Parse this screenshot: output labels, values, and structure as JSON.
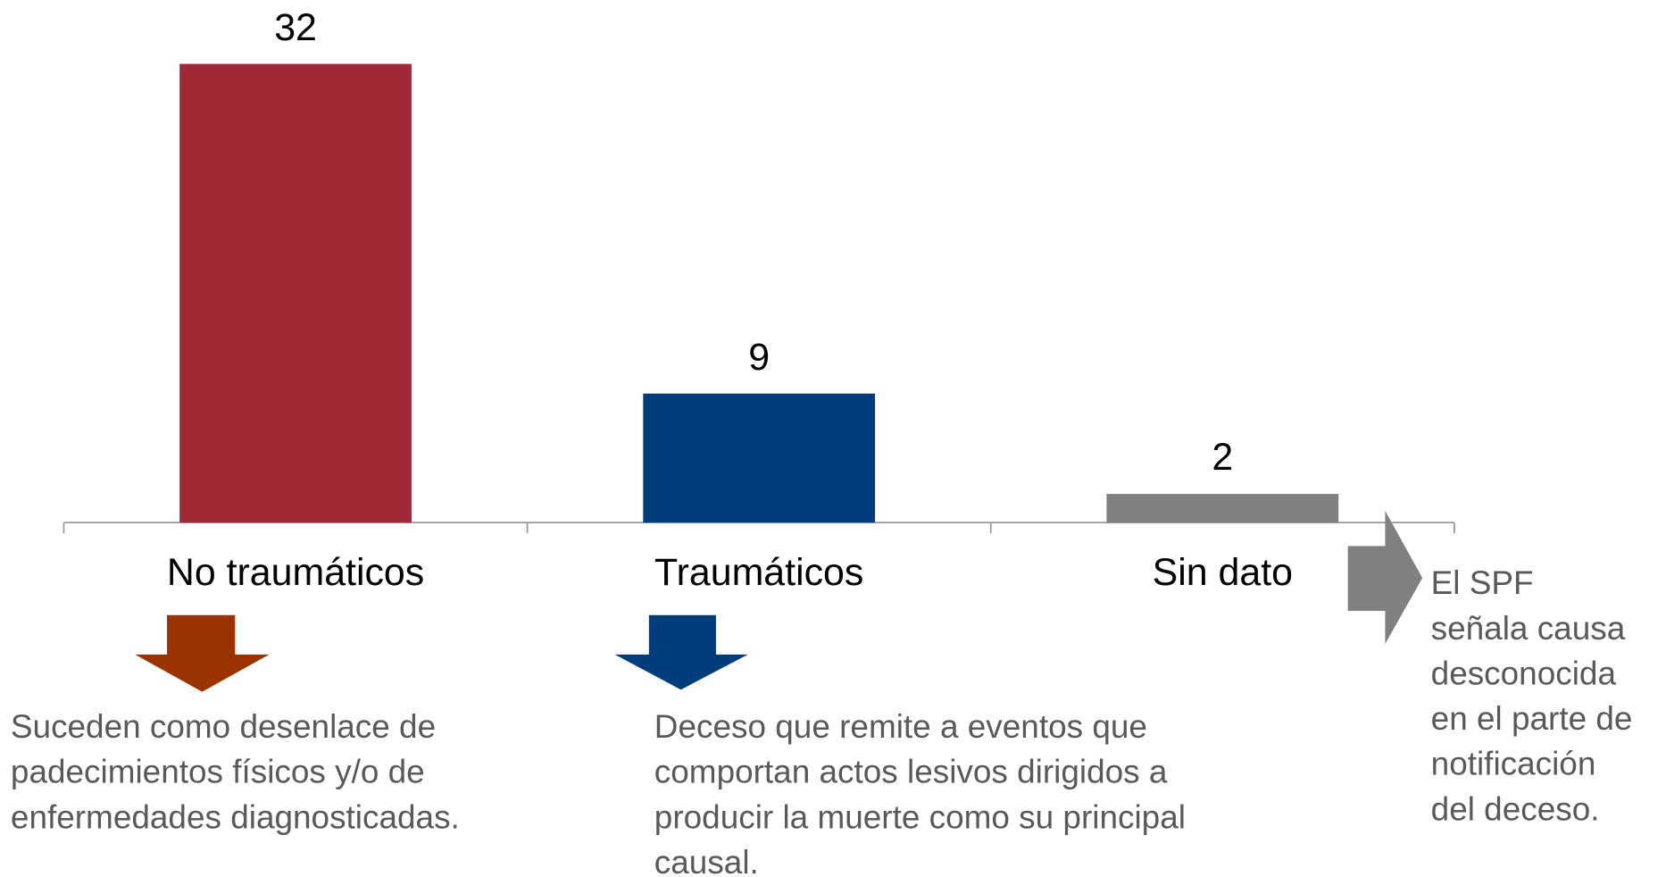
{
  "chart_data": {
    "type": "bar",
    "categories": [
      "No traumáticos",
      "Traumáticos",
      "Sin dato"
    ],
    "values": [
      32,
      9,
      2
    ],
    "colors": [
      "#9e2a37",
      "#003d7a",
      "#808080"
    ],
    "annotations": [
      {
        "lines": [
          "Suceden como desenlace de",
          "padecimientos físicos y/o de",
          "enfermedades diagnosticadas."
        ],
        "color": "#9b3300"
      },
      {
        "lines": [
          "Deceso que remite a eventos que",
          "comportan actos lesivos dirigidos a",
          "producir la muerte como su principal",
          "causal."
        ],
        "color": "#003d7a"
      },
      {
        "lines": [
          "El SPF",
          "señala causa",
          "desconocida",
          "en el parte de",
          "notificación",
          "del deceso."
        ],
        "color": "#808080"
      }
    ]
  }
}
